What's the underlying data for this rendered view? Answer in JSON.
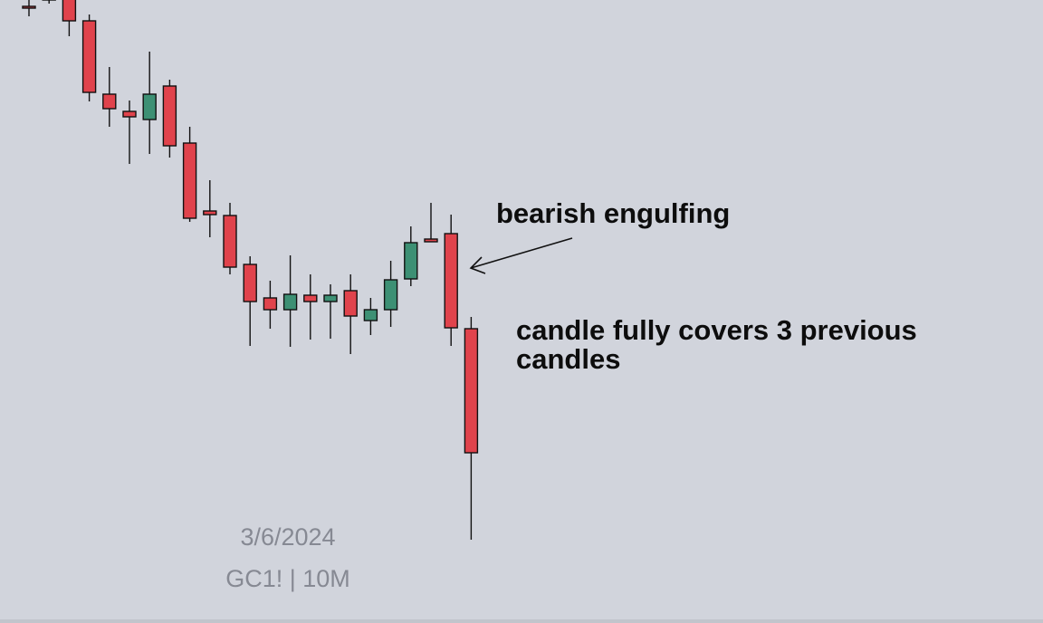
{
  "chart_data": {
    "type": "candlestick",
    "symbol_watermark": "GC1! | 10M",
    "date_watermark": "3/6/2024",
    "ylim": [
      0,
      688
    ],
    "colors": {
      "up": "#3d9074",
      "down": "#e0434c",
      "outline": "#111111",
      "background": "#d1d4dc"
    },
    "candles": [
      {
        "o": 681,
        "h": 693,
        "l": 670,
        "c": 681
      },
      {
        "o": 690,
        "h": 696,
        "l": 684,
        "c": 690
      },
      {
        "o": 690,
        "h": 700,
        "l": 648,
        "c": 665
      },
      {
        "o": 665,
        "h": 672,
        "l": 576,
        "c": 586
      },
      {
        "o": 584,
        "h": 614,
        "l": 548,
        "c": 568
      },
      {
        "o": 565,
        "h": 577,
        "l": 507,
        "c": 559
      },
      {
        "o": 556,
        "h": 631,
        "l": 518,
        "c": 584
      },
      {
        "o": 593,
        "h": 600,
        "l": 514,
        "c": 527
      },
      {
        "o": 530,
        "h": 548,
        "l": 443,
        "c": 447
      },
      {
        "o": 455,
        "h": 489,
        "l": 426,
        "c": 451
      },
      {
        "o": 450,
        "h": 464,
        "l": 385,
        "c": 393
      },
      {
        "o": 396,
        "h": 405,
        "l": 306,
        "c": 355
      },
      {
        "o": 359,
        "h": 378,
        "l": 325,
        "c": 346
      },
      {
        "o": 346,
        "h": 406,
        "l": 305,
        "c": 363
      },
      {
        "o": 362,
        "h": 385,
        "l": 313,
        "c": 355
      },
      {
        "o": 355,
        "h": 374,
        "l": 314,
        "c": 362
      },
      {
        "o": 367,
        "h": 385,
        "l": 297,
        "c": 339
      },
      {
        "o": 334,
        "h": 359,
        "l": 318,
        "c": 346
      },
      {
        "o": 346,
        "h": 400,
        "l": 327,
        "c": 379
      },
      {
        "o": 380,
        "h": 438,
        "l": 372,
        "c": 420
      },
      {
        "o": 424,
        "h": 464,
        "l": 421,
        "c": 421
      },
      {
        "o": 430,
        "h": 451,
        "l": 306,
        "c": 326
      },
      {
        "o": 325,
        "h": 338,
        "l": 92,
        "c": 188
      }
    ]
  },
  "annotations": {
    "engulfing": "bearish engulfing",
    "covers": "candle fully covers 3 previous candles"
  },
  "watermark": {
    "date": "3/6/2024",
    "symbol": "GC1! | 10M"
  }
}
